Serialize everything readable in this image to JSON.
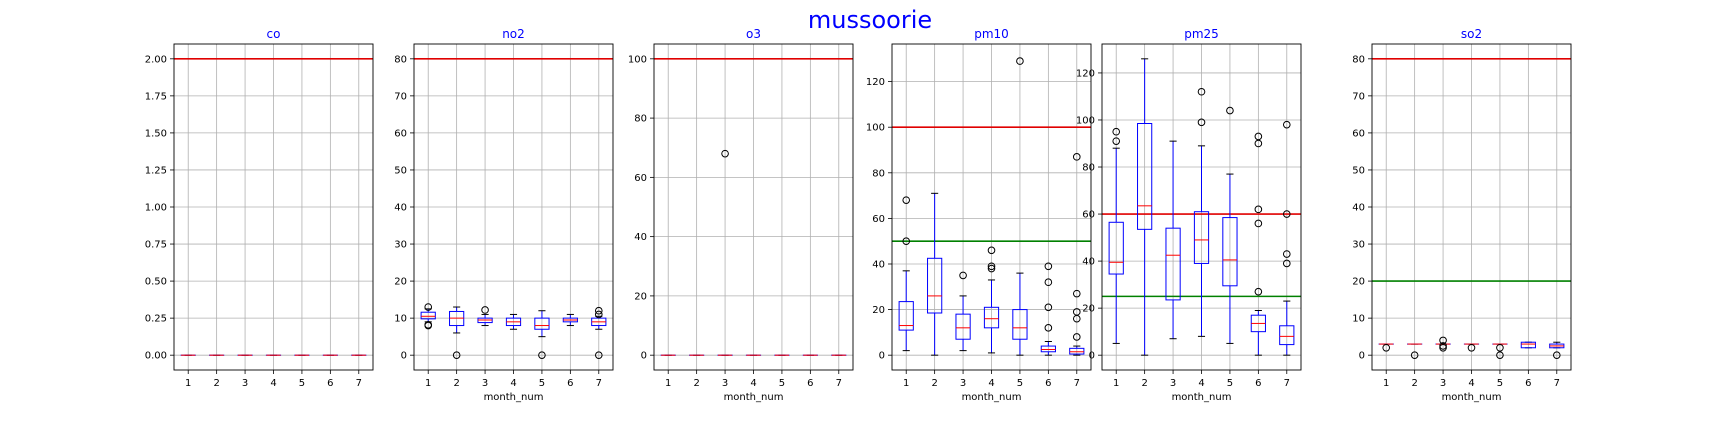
{
  "figure": {
    "title": "mussoorie"
  },
  "chart_data": [
    {
      "type": "box",
      "title": "co",
      "xlabel": "",
      "ylabel": "",
      "categories": [
        "1",
        "2",
        "3",
        "4",
        "5",
        "6",
        "7"
      ],
      "ylim": [
        -0.1,
        2.1
      ],
      "yticks": [
        "0.00",
        "0.25",
        "0.50",
        "0.75",
        "1.00",
        "1.25",
        "1.50",
        "1.75",
        "2.00"
      ],
      "grid": true,
      "thresholds": [
        {
          "value": 2.0,
          "color": "#e00000"
        }
      ],
      "boxes": [
        {
          "q1": 0,
          "median": 0,
          "q3": 0,
          "whislo": 0,
          "whishi": 0,
          "fliers": []
        },
        {
          "q1": 0,
          "median": 0,
          "q3": 0,
          "whislo": 0,
          "whishi": 0,
          "fliers": []
        },
        {
          "q1": 0,
          "median": 0,
          "q3": 0,
          "whislo": 0,
          "whishi": 0,
          "fliers": []
        },
        {
          "q1": 0,
          "median": 0,
          "q3": 0,
          "whislo": 0,
          "whishi": 0,
          "fliers": []
        },
        {
          "q1": 0,
          "median": 0,
          "q3": 0,
          "whislo": 0,
          "whishi": 0,
          "fliers": []
        },
        {
          "q1": 0,
          "median": 0,
          "q3": 0,
          "whislo": 0,
          "whishi": 0,
          "fliers": []
        },
        {
          "q1": 0,
          "median": 0,
          "q3": 0,
          "whislo": 0,
          "whishi": 0,
          "fliers": []
        }
      ]
    },
    {
      "type": "box",
      "title": "no2",
      "xlabel": "month_num",
      "ylabel": "",
      "categories": [
        "1",
        "2",
        "3",
        "4",
        "5",
        "6",
        "7"
      ],
      "ylim": [
        -4,
        84
      ],
      "yticks": [
        "0",
        "10",
        "20",
        "30",
        "40",
        "50",
        "60",
        "70",
        "80"
      ],
      "grid": true,
      "thresholds": [
        {
          "value": 80,
          "color": "#e00000"
        }
      ],
      "boxes": [
        {
          "q1": 9.8,
          "median": 10.5,
          "q3": 11.6,
          "whislo": 9.0,
          "whishi": 12.5,
          "fliers": [
            8.2,
            13.0,
            8.0
          ]
        },
        {
          "q1": 8.0,
          "median": 10.0,
          "q3": 11.8,
          "whislo": 6.0,
          "whishi": 13.0,
          "fliers": [
            0
          ]
        },
        {
          "q1": 8.8,
          "median": 9.5,
          "q3": 10.0,
          "whislo": 8.0,
          "whishi": 11.0,
          "fliers": [
            12.2
          ]
        },
        {
          "q1": 8.0,
          "median": 9.0,
          "q3": 10.0,
          "whislo": 7.0,
          "whishi": 11.0,
          "fliers": []
        },
        {
          "q1": 7.0,
          "median": 8.0,
          "q3": 10.0,
          "whislo": 5.0,
          "whishi": 12.0,
          "fliers": [
            0
          ]
        },
        {
          "q1": 9.0,
          "median": 9.5,
          "q3": 10.0,
          "whislo": 8.0,
          "whishi": 11.0,
          "fliers": []
        },
        {
          "q1": 8.0,
          "median": 9.0,
          "q3": 10.0,
          "whislo": 7.0,
          "whishi": 10.5,
          "fliers": [
            12.0,
            11.0,
            0
          ]
        }
      ]
    },
    {
      "type": "box",
      "title": "o3",
      "xlabel": "month_num",
      "ylabel": "",
      "categories": [
        "1",
        "2",
        "3",
        "4",
        "5",
        "6",
        "7"
      ],
      "ylim": [
        -5,
        105
      ],
      "yticks": [
        "0",
        "20",
        "40",
        "60",
        "80",
        "100"
      ],
      "grid": true,
      "thresholds": [
        {
          "value": 100,
          "color": "#e00000"
        }
      ],
      "boxes": [
        {
          "q1": 0,
          "median": 0,
          "q3": 0,
          "whislo": 0,
          "whishi": 0,
          "fliers": []
        },
        {
          "q1": 0,
          "median": 0,
          "q3": 0,
          "whislo": 0,
          "whishi": 0,
          "fliers": []
        },
        {
          "q1": 0,
          "median": 0,
          "q3": 0,
          "whislo": 0,
          "whishi": 0,
          "fliers": [
            68
          ]
        },
        {
          "q1": 0,
          "median": 0,
          "q3": 0,
          "whislo": 0,
          "whishi": 0,
          "fliers": []
        },
        {
          "q1": 0,
          "median": 0,
          "q3": 0,
          "whislo": 0,
          "whishi": 0,
          "fliers": []
        },
        {
          "q1": 0,
          "median": 0,
          "q3": 0,
          "whislo": 0,
          "whishi": 0,
          "fliers": []
        },
        {
          "q1": 0,
          "median": 0,
          "q3": 0,
          "whislo": 0,
          "whishi": 0,
          "fliers": []
        }
      ]
    },
    {
      "type": "box",
      "title": "pm10",
      "xlabel": "month_num",
      "ylabel": "",
      "categories": [
        "1",
        "2",
        "3",
        "4",
        "5",
        "6",
        "7"
      ],
      "ylim": [
        -6.5,
        136.5
      ],
      "yticks": [
        "0",
        "20",
        "40",
        "60",
        "80",
        "100",
        "120"
      ],
      "grid": true,
      "thresholds": [
        {
          "value": 100,
          "color": "#e00000"
        },
        {
          "value": 50,
          "color": "#008000"
        }
      ],
      "boxes": [
        {
          "q1": 11,
          "median": 13,
          "q3": 23.5,
          "whislo": 2,
          "whishi": 37,
          "fliers": [
            68,
            50
          ]
        },
        {
          "q1": 18.5,
          "median": 26,
          "q3": 42.5,
          "whislo": 0,
          "whishi": 71,
          "fliers": []
        },
        {
          "q1": 7,
          "median": 12,
          "q3": 18,
          "whislo": 2,
          "whishi": 26,
          "fliers": [
            35
          ]
        },
        {
          "q1": 12,
          "median": 16,
          "q3": 21,
          "whislo": 1,
          "whishi": 33,
          "fliers": [
            46,
            39,
            38
          ]
        },
        {
          "q1": 7,
          "median": 12,
          "q3": 20,
          "whislo": 0,
          "whishi": 36,
          "fliers": [
            129
          ]
        },
        {
          "q1": 1.5,
          "median": 2.5,
          "q3": 4,
          "whislo": 0,
          "whishi": 6,
          "fliers": [
            39,
            32,
            21,
            12
          ]
        },
        {
          "q1": 0.5,
          "median": 1.5,
          "q3": 3,
          "whislo": 0,
          "whishi": 4,
          "fliers": [
            87,
            27,
            19,
            16,
            8
          ]
        }
      ]
    },
    {
      "type": "box",
      "title": "pm25",
      "xlabel": "month_num",
      "ylabel": "",
      "categories": [
        "1",
        "2",
        "3",
        "4",
        "5",
        "6",
        "7"
      ],
      "ylim": [
        -6.3,
        132.3
      ],
      "yticks": [
        "0",
        "20",
        "40",
        "60",
        "80",
        "100",
        "120"
      ],
      "grid": true,
      "thresholds": [
        {
          "value": 60,
          "color": "#e00000"
        },
        {
          "value": 25,
          "color": "#008000"
        }
      ],
      "boxes": [
        {
          "q1": 34.5,
          "median": 39.5,
          "q3": 56.5,
          "whislo": 5,
          "whishi": 88,
          "fliers": [
            95,
            91
          ]
        },
        {
          "q1": 53.5,
          "median": 63.5,
          "q3": 98.5,
          "whislo": 0,
          "whishi": 126,
          "fliers": []
        },
        {
          "q1": 23.5,
          "median": 42.5,
          "q3": 54,
          "whislo": 7,
          "whishi": 91,
          "fliers": []
        },
        {
          "q1": 39,
          "median": 49,
          "q3": 61,
          "whislo": 8,
          "whishi": 89,
          "fliers": [
            112,
            99
          ]
        },
        {
          "q1": 29.5,
          "median": 40.5,
          "q3": 58.5,
          "whislo": 5,
          "whishi": 77,
          "fliers": [
            104
          ]
        },
        {
          "q1": 10,
          "median": 13.5,
          "q3": 17,
          "whislo": 0,
          "whishi": 19,
          "fliers": [
            93,
            90,
            62,
            56,
            27
          ]
        },
        {
          "q1": 4.5,
          "median": 8,
          "q3": 12.5,
          "whislo": 0,
          "whishi": 23,
          "fliers": [
            98,
            60,
            43,
            39
          ]
        }
      ]
    },
    {
      "type": "box",
      "title": "so2",
      "xlabel": "month_num",
      "ylabel": "",
      "categories": [
        "1",
        "2",
        "3",
        "4",
        "5",
        "6",
        "7"
      ],
      "ylim": [
        -4,
        84
      ],
      "yticks": [
        "0",
        "10",
        "20",
        "30",
        "40",
        "50",
        "60",
        "70",
        "80"
      ],
      "grid": true,
      "thresholds": [
        {
          "value": 80,
          "color": "#e00000"
        },
        {
          "value": 20,
          "color": "#008000"
        }
      ],
      "boxes": [
        {
          "q1": 3,
          "median": 3,
          "q3": 3,
          "whislo": 3,
          "whishi": 3,
          "fliers": [
            2
          ]
        },
        {
          "q1": 3,
          "median": 3,
          "q3": 3,
          "whislo": 3,
          "whishi": 3,
          "fliers": [
            0
          ]
        },
        {
          "q1": 3,
          "median": 3,
          "q3": 3,
          "whislo": 3,
          "whishi": 3,
          "fliers": [
            4,
            2.5,
            2
          ]
        },
        {
          "q1": 3,
          "median": 3,
          "q3": 3,
          "whislo": 3,
          "whishi": 3,
          "fliers": [
            2
          ]
        },
        {
          "q1": 3,
          "median": 3,
          "q3": 3,
          "whislo": 3,
          "whishi": 3,
          "fliers": [
            2,
            0
          ]
        },
        {
          "q1": 2,
          "median": 3,
          "q3": 3.5,
          "whislo": 2,
          "whishi": 3.5,
          "fliers": []
        },
        {
          "q1": 2,
          "median": 2.5,
          "q3": 3,
          "whislo": 2,
          "whishi": 3.5,
          "fliers": [
            0
          ]
        }
      ]
    }
  ],
  "colors": {
    "box": "#0000ff",
    "median": "#ff0000",
    "grid": "#b0b0b0",
    "axis": "#000000"
  }
}
